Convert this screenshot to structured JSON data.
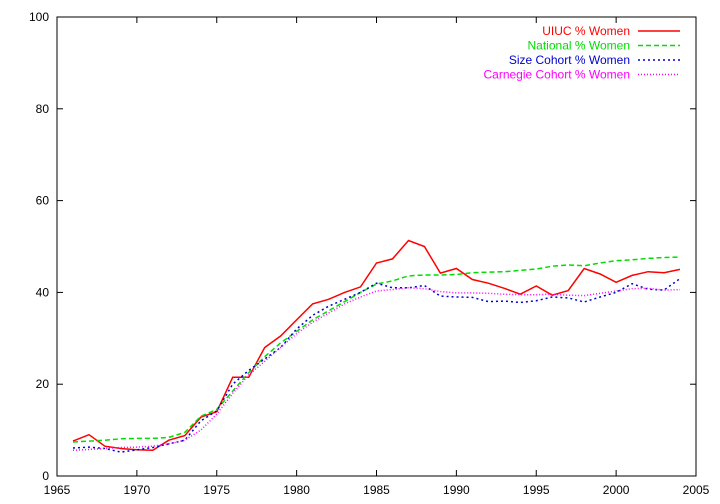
{
  "chart_data": {
    "type": "line",
    "title": "",
    "xlabel": "",
    "ylabel": "",
    "xlim": [
      1965,
      2005
    ],
    "ylim": [
      0,
      100
    ],
    "xticks": [
      1965,
      1970,
      1975,
      1980,
      1985,
      1990,
      1995,
      2000,
      2005
    ],
    "yticks": [
      0,
      20,
      40,
      60,
      80,
      100
    ],
    "grid": false,
    "legend_position": "top-right",
    "series": [
      {
        "name": "UIUC % Women",
        "color": "#ff0000",
        "style": "solid",
        "x": [
          1966,
          1967,
          1968,
          1969,
          1970,
          1971,
          1972,
          1973,
          1974,
          1975,
          1976,
          1977,
          1978,
          1979,
          1980,
          1981,
          1982,
          1983,
          1984,
          1985,
          1986,
          1987,
          1988,
          1989,
          1990,
          1991,
          1992,
          1993,
          1994,
          1995,
          1996,
          1997,
          1998,
          1999,
          2000,
          2001,
          2002,
          2003,
          2004
        ],
        "values": [
          7.6,
          9.0,
          6.5,
          6.0,
          5.7,
          5.6,
          7.8,
          8.8,
          12.8,
          14.0,
          21.5,
          21.5,
          28.0,
          30.5,
          34.0,
          37.5,
          38.5,
          40.0,
          41.2,
          46.4,
          47.3,
          51.3,
          50.0,
          44.2,
          45.2,
          42.8,
          42.0,
          40.9,
          39.6,
          41.4,
          39.4,
          40.4,
          45.2,
          44.0,
          42.2,
          43.7,
          44.5,
          44.3,
          45.0
        ]
      },
      {
        "name": "National % Women",
        "color": "#00dd00",
        "style": "dashed",
        "x": [
          1966,
          1967,
          1968,
          1969,
          1970,
          1971,
          1972,
          1973,
          1974,
          1975,
          1976,
          1977,
          1978,
          1979,
          1980,
          1981,
          1982,
          1983,
          1984,
          1985,
          1986,
          1987,
          1988,
          1989,
          1990,
          1991,
          1992,
          1993,
          1994,
          1995,
          1996,
          1997,
          1998,
          1999,
          2000,
          2001,
          2002,
          2003,
          2004
        ],
        "values": [
          7.4,
          7.6,
          7.8,
          8.1,
          8.2,
          8.2,
          8.4,
          9.5,
          13.0,
          14.5,
          18.5,
          22.5,
          26.0,
          29.0,
          31.5,
          34.0,
          36.0,
          38.0,
          40.0,
          41.8,
          42.5,
          43.6,
          43.8,
          43.8,
          43.9,
          44.3,
          44.4,
          44.5,
          44.8,
          45.1,
          45.7,
          46.0,
          45.8,
          46.4,
          46.9,
          47.1,
          47.4,
          47.6,
          47.7
        ]
      },
      {
        "name": "Size Cohort % Women",
        "color": "#0000cc",
        "style": "dotted",
        "x": [
          1966,
          1967,
          1968,
          1969,
          1970,
          1971,
          1972,
          1973,
          1974,
          1975,
          1976,
          1977,
          1978,
          1979,
          1980,
          1981,
          1982,
          1983,
          1984,
          1985,
          1986,
          1987,
          1988,
          1989,
          1990,
          1991,
          1992,
          1993,
          1994,
          1995,
          1996,
          1997,
          1998,
          1999,
          2000,
          2001,
          2002,
          2003,
          2004
        ],
        "values": [
          6.1,
          6.3,
          6.0,
          5.2,
          5.7,
          6.2,
          7.0,
          7.8,
          12.0,
          14.2,
          20.0,
          23.0,
          25.5,
          28.0,
          32.0,
          35.0,
          37.0,
          38.5,
          40.0,
          42.0,
          41.0,
          41.0,
          41.5,
          39.2,
          39.0,
          38.9,
          38.0,
          38.1,
          37.8,
          38.2,
          39.0,
          38.8,
          37.9,
          39.0,
          40.0,
          41.9,
          40.7,
          40.5,
          43.0
        ]
      },
      {
        "name": "Carnegie Cohort % Women",
        "color": "#ff00ff",
        "style": "densedot",
        "x": [
          1966,
          1967,
          1968,
          1969,
          1970,
          1971,
          1972,
          1973,
          1974,
          1975,
          1976,
          1977,
          1978,
          1979,
          1980,
          1981,
          1982,
          1983,
          1984,
          1985,
          1986,
          1987,
          1988,
          1989,
          1990,
          1991,
          1992,
          1993,
          1994,
          1995,
          1996,
          1997,
          1998,
          1999,
          2000,
          2001,
          2002,
          2003,
          2004
        ],
        "values": [
          5.6,
          5.8,
          6.0,
          6.2,
          6.3,
          6.5,
          7.0,
          7.8,
          10.0,
          13.5,
          18.0,
          22.0,
          25.0,
          28.0,
          31.0,
          33.5,
          35.5,
          37.5,
          39.0,
          40.3,
          40.6,
          41.0,
          40.8,
          40.2,
          39.9,
          39.9,
          39.8,
          39.6,
          39.5,
          39.5,
          39.6,
          39.4,
          39.3,
          39.8,
          40.3,
          40.8,
          40.9,
          40.5,
          40.6
        ]
      }
    ]
  }
}
